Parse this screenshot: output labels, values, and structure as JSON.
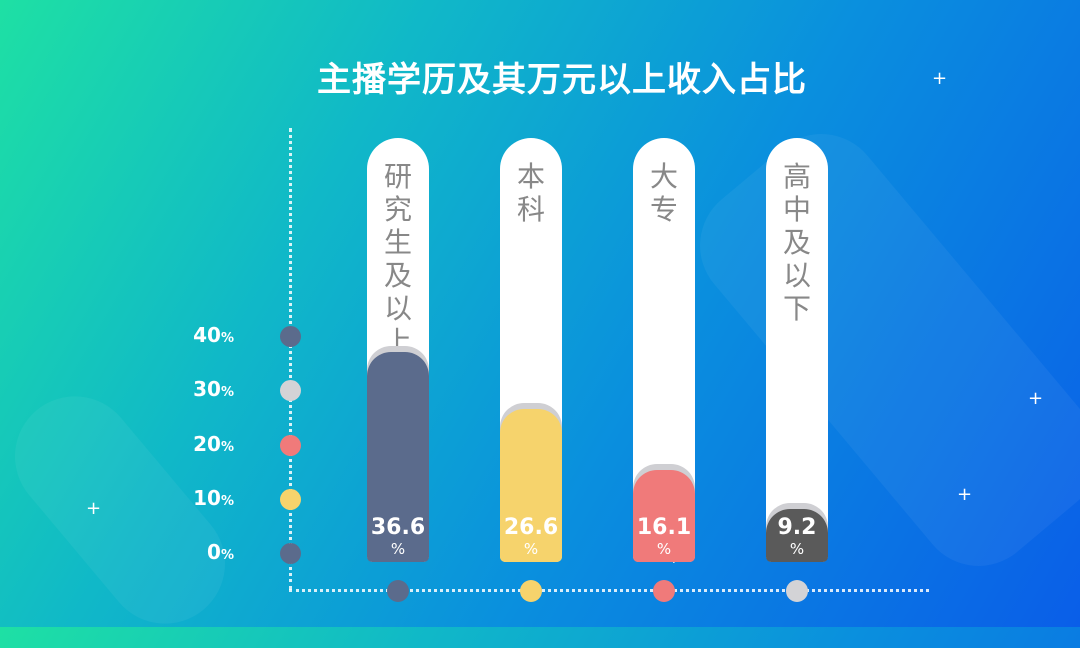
{
  "chart_data": {
    "type": "bar",
    "title": "主播学历及其万元以上收入占比",
    "categories": [
      "研究生及以上",
      "本科",
      "大专",
      "高中及以下"
    ],
    "values": [
      36.6,
      26.6,
      16.1,
      9.2
    ],
    "value_labels": [
      "36.6",
      "26.6",
      "16.1",
      "9.2"
    ],
    "unit": "%",
    "yticks": [
      "0%",
      "10%",
      "20%",
      "30%",
      "40%"
    ],
    "ylim": [
      0,
      40
    ],
    "grid": false,
    "colors": [
      "#5b6b8c",
      "#f6d36c",
      "#f07a7a",
      "#5a5a5a"
    ],
    "tick_dot_colors": [
      "#5b6b8c",
      "#f6d36c",
      "#f07a7a",
      "#d3d3d6",
      "#5b6b8c"
    ],
    "bottom_dot_colors": [
      "#5b6b8c",
      "#f6d36c",
      "#f07a7a",
      "#d3d3d6"
    ]
  }
}
